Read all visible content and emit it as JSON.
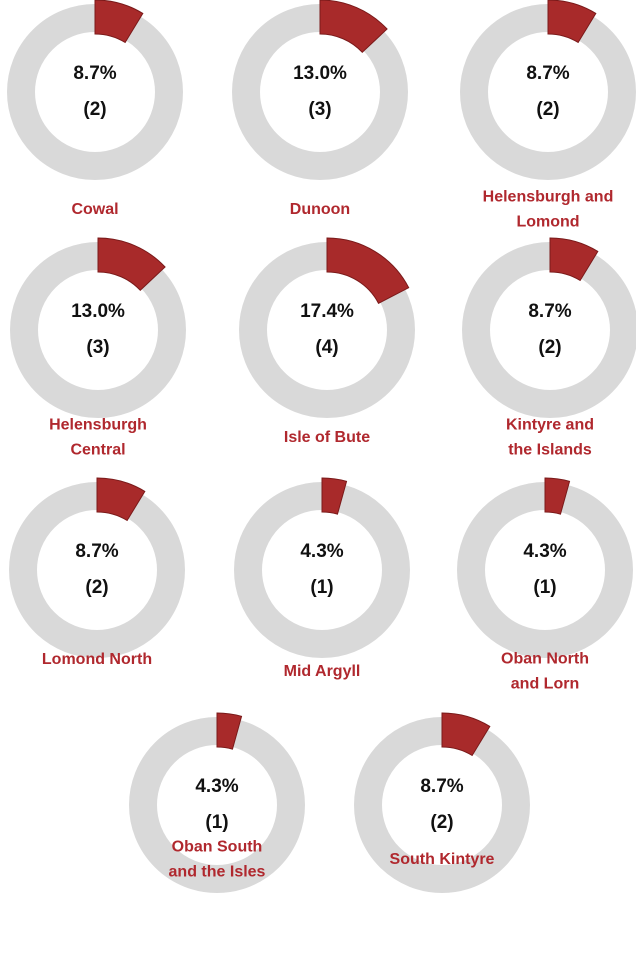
{
  "chart_data": [
    {
      "type": "donut",
      "title": [
        "Cowal"
      ],
      "values": [
        8.7
      ],
      "value_labels": [
        "8.7%"
      ],
      "counts": [
        2
      ],
      "count_labels": [
        "(2)"
      ],
      "color": "#a82a2a",
      "track_color": "#d9d9d9"
    },
    {
      "type": "donut",
      "title": [
        "Dunoon"
      ],
      "values": [
        13.0
      ],
      "value_labels": [
        "13.0%"
      ],
      "counts": [
        3
      ],
      "count_labels": [
        "(3)"
      ],
      "color": "#a82a2a",
      "track_color": "#d9d9d9"
    },
    {
      "type": "donut",
      "title": [
        "Helensburgh and",
        "Lomond"
      ],
      "values": [
        8.7
      ],
      "value_labels": [
        "8.7%"
      ],
      "counts": [
        2
      ],
      "count_labels": [
        "(2)"
      ],
      "color": "#a82a2a",
      "track_color": "#d9d9d9"
    },
    {
      "type": "donut",
      "title": [
        "Helensburgh",
        "Central"
      ],
      "values": [
        13.0
      ],
      "value_labels": [
        "13.0%"
      ],
      "counts": [
        3
      ],
      "count_labels": [
        "(3)"
      ],
      "color": "#a82a2a",
      "track_color": "#d9d9d9"
    },
    {
      "type": "donut",
      "title": [
        "Isle of Bute"
      ],
      "values": [
        17.4
      ],
      "value_labels": [
        "17.4%"
      ],
      "counts": [
        4
      ],
      "count_labels": [
        "(4)"
      ],
      "color": "#a82a2a",
      "track_color": "#d9d9d9"
    },
    {
      "type": "donut",
      "title": [
        "Kintyre and",
        "the Islands"
      ],
      "values": [
        8.7
      ],
      "value_labels": [
        "8.7%"
      ],
      "counts": [
        2
      ],
      "count_labels": [
        "(2)"
      ],
      "color": "#a82a2a",
      "track_color": "#d9d9d9"
    },
    {
      "type": "donut",
      "title": [
        "Lomond North"
      ],
      "values": [
        8.7
      ],
      "value_labels": [
        "8.7%"
      ],
      "counts": [
        2
      ],
      "count_labels": [
        "(2)"
      ],
      "color": "#a82a2a",
      "track_color": "#d9d9d9"
    },
    {
      "type": "donut",
      "title": [
        "Mid Argyll"
      ],
      "values": [
        4.3
      ],
      "value_labels": [
        "4.3%"
      ],
      "counts": [
        1
      ],
      "count_labels": [
        "(1)"
      ],
      "color": "#a82a2a",
      "track_color": "#d9d9d9"
    },
    {
      "type": "donut",
      "title": [
        "Oban North",
        "and Lorn"
      ],
      "values": [
        4.3
      ],
      "value_labels": [
        "4.3%"
      ],
      "counts": [
        1
      ],
      "count_labels": [
        "(1)"
      ],
      "color": "#a82a2a",
      "track_color": "#d9d9d9"
    },
    {
      "type": "donut",
      "title": [
        "Oban South",
        "and the Isles"
      ],
      "values": [
        4.3
      ],
      "value_labels": [
        "4.3%"
      ],
      "counts": [
        1
      ],
      "count_labels": [
        "(1)"
      ],
      "color": "#a82a2a",
      "track_color": "#d9d9d9"
    },
    {
      "type": "donut",
      "title": [
        "South Kintyre"
      ],
      "values": [
        8.7
      ],
      "value_labels": [
        "8.7%"
      ],
      "counts": [
        2
      ],
      "count_labels": [
        "(2)"
      ],
      "color": "#a82a2a",
      "track_color": "#d9d9d9"
    }
  ]
}
